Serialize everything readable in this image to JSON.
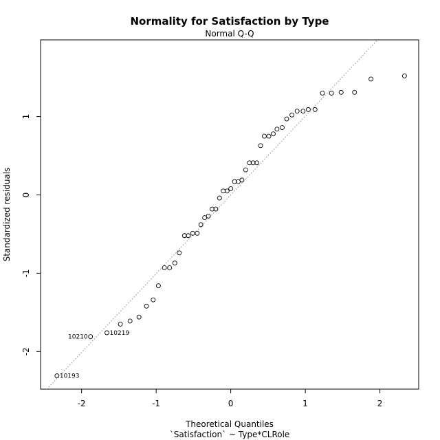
{
  "chart_data": {
    "type": "scatter",
    "title": "Normality for Satisfaction by Type",
    "subtitle": "Normal Q-Q",
    "xlabel": "Theoretical Quantiles",
    "xlabel2": "`Satisfaction` ~ Type*CLRole",
    "ylabel": "Standardized residuals",
    "xlim": [
      -2.55,
      2.52
    ],
    "ylim": [
      -2.48,
      1.98
    ],
    "xticks": [
      -2,
      -1,
      0,
      1,
      2
    ],
    "xtick_labels": [
      "-2",
      "-1",
      "0",
      "1",
      "2"
    ],
    "yticks": [
      -2,
      -1,
      0,
      1
    ],
    "ytick_labels": [
      "-2",
      "-1",
      "0",
      "1"
    ],
    "grid": false,
    "reference_line": {
      "slope": 1.006,
      "intercept": 0.0
    },
    "points": [
      {
        "x": -2.33,
        "y": -2.31,
        "label": "10193"
      },
      {
        "x": -1.88,
        "y": -1.81,
        "label": "10210"
      },
      {
        "x": -1.66,
        "y": -1.76,
        "label": "10219"
      },
      {
        "x": -1.48,
        "y": -1.65
      },
      {
        "x": -1.35,
        "y": -1.61
      },
      {
        "x": -1.23,
        "y": -1.56
      },
      {
        "x": -1.13,
        "y": -1.42
      },
      {
        "x": -1.04,
        "y": -1.34
      },
      {
        "x": -0.97,
        "y": -1.16
      },
      {
        "x": -0.89,
        "y": -0.93
      },
      {
        "x": -0.82,
        "y": -0.93
      },
      {
        "x": -0.75,
        "y": -0.87
      },
      {
        "x": -0.69,
        "y": -0.74
      },
      {
        "x": -0.62,
        "y": -0.52
      },
      {
        "x": -0.57,
        "y": -0.52
      },
      {
        "x": -0.51,
        "y": -0.49
      },
      {
        "x": -0.45,
        "y": -0.49
      },
      {
        "x": -0.4,
        "y": -0.38
      },
      {
        "x": -0.35,
        "y": -0.29
      },
      {
        "x": -0.3,
        "y": -0.27
      },
      {
        "x": -0.25,
        "y": -0.18
      },
      {
        "x": -0.2,
        "y": -0.18
      },
      {
        "x": -0.15,
        "y": -0.04
      },
      {
        "x": -0.1,
        "y": 0.05
      },
      {
        "x": -0.05,
        "y": 0.05
      },
      {
        "x": 0.0,
        "y": 0.08
      },
      {
        "x": 0.05,
        "y": 0.17
      },
      {
        "x": 0.1,
        "y": 0.17
      },
      {
        "x": 0.15,
        "y": 0.19
      },
      {
        "x": 0.2,
        "y": 0.32
      },
      {
        "x": 0.25,
        "y": 0.41
      },
      {
        "x": 0.3,
        "y": 0.41
      },
      {
        "x": 0.35,
        "y": 0.41
      },
      {
        "x": 0.4,
        "y": 0.63
      },
      {
        "x": 0.45,
        "y": 0.75
      },
      {
        "x": 0.51,
        "y": 0.75
      },
      {
        "x": 0.57,
        "y": 0.78
      },
      {
        "x": 0.62,
        "y": 0.84
      },
      {
        "x": 0.69,
        "y": 0.86
      },
      {
        "x": 0.75,
        "y": 0.97
      },
      {
        "x": 0.82,
        "y": 1.02
      },
      {
        "x": 0.89,
        "y": 1.07
      },
      {
        "x": 0.97,
        "y": 1.07
      },
      {
        "x": 1.04,
        "y": 1.09
      },
      {
        "x": 1.13,
        "y": 1.09
      },
      {
        "x": 1.23,
        "y": 1.3
      },
      {
        "x": 1.35,
        "y": 1.3
      },
      {
        "x": 1.48,
        "y": 1.31
      },
      {
        "x": 1.66,
        "y": 1.31
      },
      {
        "x": 1.88,
        "y": 1.48
      },
      {
        "x": 2.33,
        "y": 1.52
      }
    ]
  }
}
